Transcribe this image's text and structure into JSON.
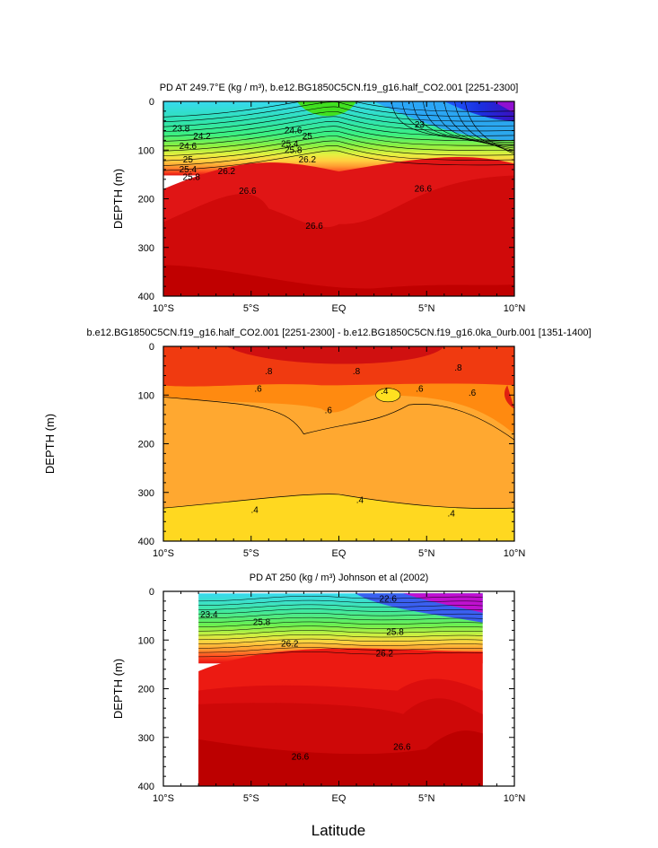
{
  "figure": {
    "xlabel": "Latitude"
  },
  "chart_data": [
    {
      "type": "heatmap",
      "panel": "top",
      "title": "PD AT 249.7°E (kg / m³), b.e12.BG1850C5CN.f19_g16.half_CO2.001 [2251-2300]",
      "ylabel": "DEPTH (m)",
      "xlim": [
        -10,
        10
      ],
      "ylim": [
        400,
        0
      ],
      "x_ticks": [
        "10°S",
        "5°S",
        "EQ",
        "5°N",
        "10°N"
      ],
      "y_ticks": [
        "0",
        "100",
        "200",
        "300",
        "400"
      ],
      "contour_labels": [
        "23.8",
        "24.2",
        "24.6",
        "25",
        "25.4",
        "25.8",
        "26.2",
        "26.6",
        "26.6",
        "24.6",
        "25",
        "25.4",
        "25.8",
        "26.2",
        "23",
        "26.6"
      ]
    },
    {
      "type": "heatmap",
      "panel": "middle",
      "title": "b.e12.BG1850C5CN.f19_g16.half_CO2.001 [2251-2300] - b.e12.BG1850C5CN.f19_g16.0ka_0urb.001 [1351-1400]",
      "ylabel": "DEPTH (m)",
      "xlim": [
        -10,
        10
      ],
      "ylim": [
        400,
        0
      ],
      "x_ticks": [
        "10°S",
        "5°S",
        "EQ",
        "5°N",
        "10°N"
      ],
      "y_ticks": [
        "0",
        "100",
        "200",
        "300",
        "400"
      ],
      "contour_labels": [
        ".8",
        ".8",
        ".8",
        ".6",
        ".6",
        ".6",
        ".6",
        ".4",
        ".4",
        ".4",
        ".4"
      ]
    },
    {
      "type": "heatmap",
      "panel": "bottom",
      "title": "PD AT 250 (kg / m³) Johnson et al (2002)",
      "ylabel": "DEPTH (m)",
      "xlim": [
        -10,
        10
      ],
      "ylim": [
        400,
        0
      ],
      "data_extent_x": [
        -8,
        8.2
      ],
      "x_ticks": [
        "10°S",
        "5°S",
        "EQ",
        "5°N",
        "10°N"
      ],
      "y_ticks": [
        "0",
        "100",
        "200",
        "300",
        "400"
      ],
      "contour_labels": [
        "23.4",
        "25.8",
        "26.2",
        "26.2",
        "25.8",
        "22.6",
        "26.6",
        "26.6"
      ]
    }
  ]
}
